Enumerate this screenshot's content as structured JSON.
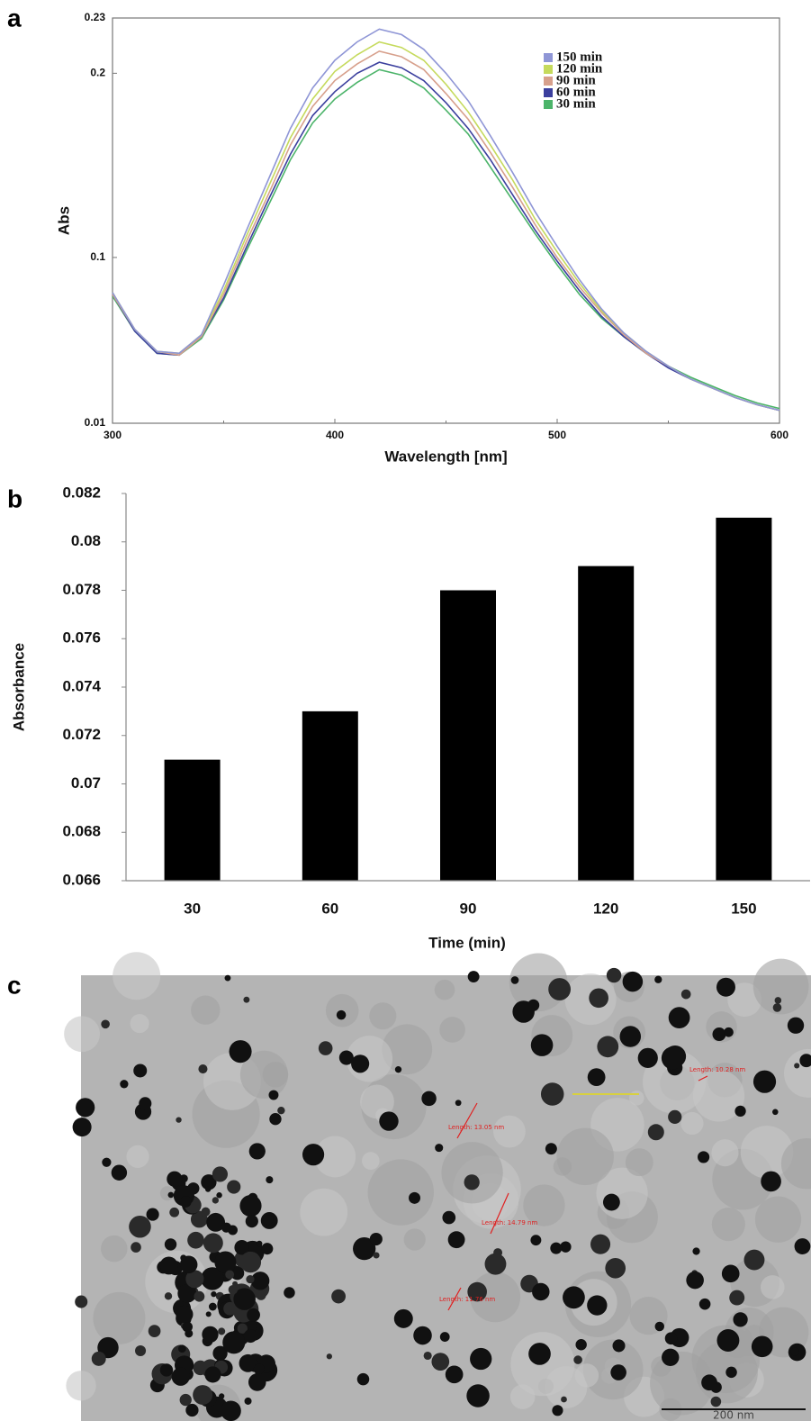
{
  "panel_labels": [
    "a",
    "b",
    "c"
  ],
  "chart_data": [
    {
      "type": "line",
      "ylabel": "Abs",
      "xlabel": "Wavelength [nm]",
      "xlim": [
        300,
        600
      ],
      "xticks": [
        300,
        400,
        500,
        600
      ],
      "ylim": [
        0.01,
        0.23
      ],
      "yticks": [
        0.01,
        0.1,
        0.2,
        0.23
      ],
      "legend": "top-right",
      "x": [
        300,
        310,
        320,
        330,
        340,
        350,
        360,
        370,
        380,
        390,
        400,
        410,
        420,
        430,
        440,
        450,
        460,
        470,
        480,
        490,
        500,
        510,
        520,
        530,
        540,
        550,
        560,
        570,
        580,
        590,
        600
      ],
      "series": [
        {
          "name": "150 min",
          "color": "#8f96d6",
          "values": [
            0.081,
            0.061,
            0.049,
            0.048,
            0.058,
            0.085,
            0.114,
            0.142,
            0.17,
            0.192,
            0.207,
            0.217,
            0.224,
            0.221,
            0.213,
            0.2,
            0.185,
            0.166,
            0.146,
            0.125,
            0.106,
            0.088,
            0.072,
            0.059,
            0.049,
            0.041,
            0.034,
            0.029,
            0.024,
            0.02,
            0.017
          ]
        },
        {
          "name": "120 min",
          "color": "#c5da5c",
          "values": [
            0.081,
            0.061,
            0.049,
            0.048,
            0.058,
            0.082,
            0.111,
            0.138,
            0.165,
            0.186,
            0.201,
            0.21,
            0.217,
            0.214,
            0.207,
            0.194,
            0.179,
            0.161,
            0.142,
            0.121,
            0.103,
            0.086,
            0.071,
            0.059,
            0.049,
            0.041,
            0.034,
            0.029,
            0.024,
            0.02,
            0.017
          ]
        },
        {
          "name": "90 min",
          "color": "#d7a08c",
          "values": [
            0.08,
            0.061,
            0.049,
            0.047,
            0.057,
            0.08,
            0.108,
            0.134,
            0.161,
            0.182,
            0.196,
            0.205,
            0.212,
            0.209,
            0.202,
            0.189,
            0.175,
            0.157,
            0.138,
            0.118,
            0.1,
            0.084,
            0.07,
            0.058,
            0.048,
            0.041,
            0.034,
            0.029,
            0.024,
            0.02,
            0.017
          ]
        },
        {
          "name": "60 min",
          "color": "#3b3f9e",
          "values": [
            0.08,
            0.06,
            0.048,
            0.047,
            0.057,
            0.078,
            0.105,
            0.131,
            0.156,
            0.177,
            0.19,
            0.2,
            0.206,
            0.203,
            0.196,
            0.184,
            0.17,
            0.153,
            0.134,
            0.115,
            0.098,
            0.082,
            0.068,
            0.057,
            0.048,
            0.04,
            0.034,
            0.029,
            0.024,
            0.02,
            0.017
          ]
        },
        {
          "name": "30 min",
          "color": "#4cb46a",
          "values": [
            0.079,
            0.06,
            0.048,
            0.047,
            0.056,
            0.077,
            0.103,
            0.128,
            0.153,
            0.173,
            0.186,
            0.195,
            0.202,
            0.199,
            0.192,
            0.18,
            0.167,
            0.149,
            0.131,
            0.113,
            0.096,
            0.08,
            0.067,
            0.057,
            0.048,
            0.041,
            0.035,
            0.03,
            0.025,
            0.021,
            0.018
          ]
        }
      ]
    },
    {
      "type": "bar",
      "ylabel": "Absorbance",
      "xlabel": "Time (min)",
      "categories": [
        "30",
        "60",
        "90",
        "120",
        "150"
      ],
      "values": [
        0.071,
        0.073,
        0.078,
        0.079,
        0.081
      ],
      "color": "#000000",
      "ylim": [
        0.066,
        0.082
      ],
      "yticks": [
        0.066,
        0.068,
        0.07,
        0.072,
        0.074,
        0.076,
        0.078,
        0.08,
        0.082
      ]
    }
  ],
  "micrograph": {
    "measurements": [
      "Length: 13.05 nm",
      "Length: 14.79 nm",
      "Length: 11.76 nm",
      "Length: 10.28 nm"
    ],
    "scale_bar": "200 nm"
  }
}
